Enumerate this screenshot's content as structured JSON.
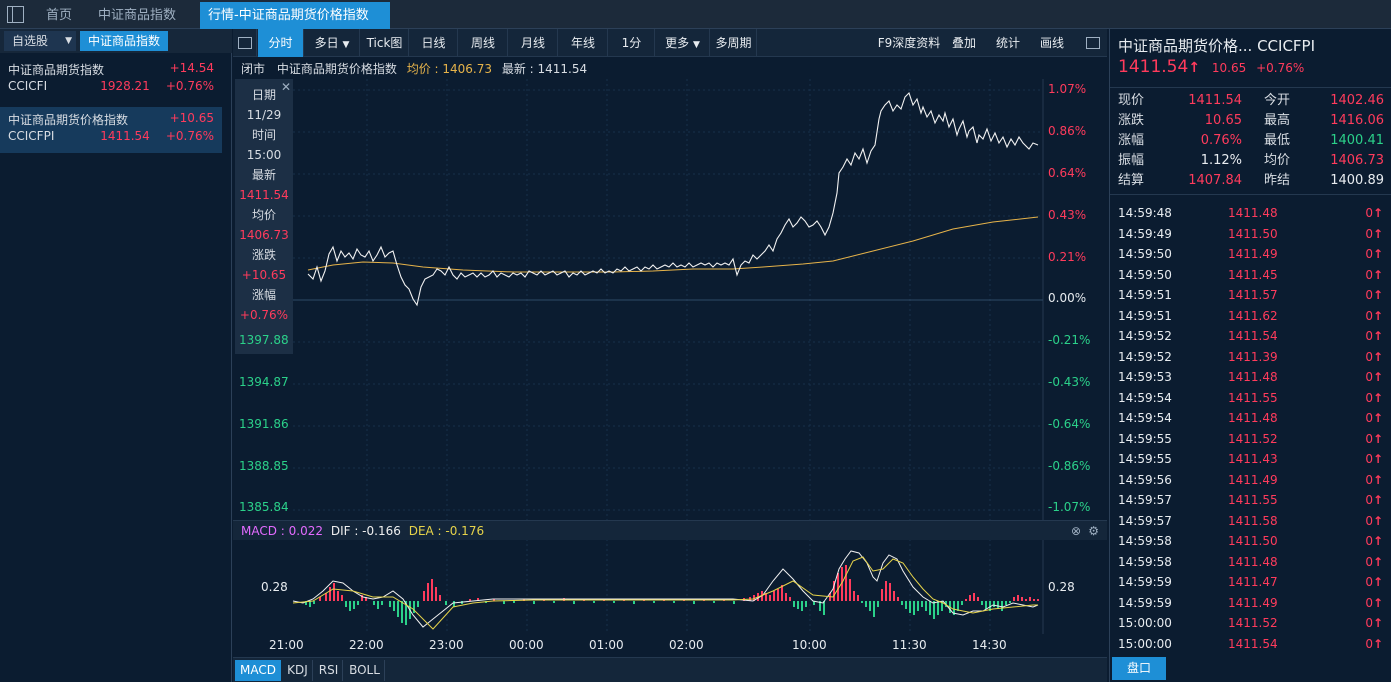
{
  "tabs": [
    "首页",
    "中证商品指数",
    "行情-中证商品期货价格指数"
  ],
  "left": {
    "tabs": [
      "自选股",
      "中证商品指数"
    ],
    "items": [
      {
        "name": "中证商品期货指数",
        "code": "CCICFI",
        "change": "+14.54",
        "price": "1928.21",
        "pct": "+0.76%"
      },
      {
        "name": "中证商品期货价格指数",
        "code": "CCICFPI",
        "change": "+10.65",
        "price": "1411.54",
        "pct": "+0.76%"
      }
    ]
  },
  "toolbar": {
    "buttons": [
      "分时",
      "多日",
      "Tick图",
      "日线",
      "周线",
      "月线",
      "年线",
      "1分",
      "更多",
      "多周期"
    ],
    "right": [
      "F9深度资料",
      "叠加",
      "统计",
      "画线"
    ]
  },
  "chart_info": {
    "status": "闭市",
    "name": "中证商品期货价格指数",
    "avg_label": "均价 : 1406.73",
    "last_label": "最新 : 1411.54"
  },
  "tooltip": {
    "date_label": "日期",
    "date": "11/29",
    "time_label": "时间",
    "time": "15:00",
    "last_label": "最新",
    "last": "1411.54",
    "avg_label": "均价",
    "avg": "1406.73",
    "chg_label": "涨跌",
    "chg": "+10.65",
    "pct_label": "涨幅",
    "pct": "+0.76%"
  },
  "price_axis": [
    "1397.88",
    "1394.87",
    "1391.86",
    "1388.85",
    "1385.84"
  ],
  "pct_axis": [
    "1.07%",
    "0.86%",
    "0.64%",
    "0.43%",
    "0.21%",
    "0.00%",
    "-0.21%",
    "-0.43%",
    "-0.64%",
    "-0.86%",
    "-1.07%"
  ],
  "macd": {
    "title": "MACD : 0.022",
    "dif": "DIF : -0.166",
    "dea": "DEA : -0.176",
    "level_left": "0.28",
    "level_right": "0.28"
  },
  "time_axis": [
    "21:00",
    "22:00",
    "23:00",
    "00:00",
    "01:00",
    "02:00",
    "10:00",
    "11:30",
    "14:30"
  ],
  "indicators": [
    "MACD",
    "KDJ",
    "RSI",
    "BOLL"
  ],
  "colors": {
    "up": "#ff3b5c",
    "down": "#2bd18a",
    "avg": "#e6b34a",
    "accent": "#1e8fd6"
  },
  "right": {
    "title": "中证商品期货价格... CCICFPI",
    "price": "1411.54",
    "arrow": "↑",
    "change": "10.65",
    "pct": "+0.76%",
    "stats": [
      {
        "l1": "现价",
        "v1": "1411.54",
        "l2": "今开",
        "v2": "1402.46"
      },
      {
        "l1": "涨跌",
        "v1": "10.65",
        "l2": "最高",
        "v2": "1416.06"
      },
      {
        "l1": "涨幅",
        "v1": "0.76%",
        "l2": "最低",
        "v2": "1400.41"
      },
      {
        "l1": "振幅",
        "v1": "1.12%",
        "l2": "均价",
        "v2": "1406.73"
      },
      {
        "l1": "结算",
        "v1": "1407.84",
        "l2": "昨结",
        "v2": "1400.89"
      }
    ],
    "ticks": [
      {
        "t": "14:59:48",
        "p": "1411.48",
        "v": "0"
      },
      {
        "t": "14:59:49",
        "p": "1411.50",
        "v": "0"
      },
      {
        "t": "14:59:50",
        "p": "1411.49",
        "v": "0"
      },
      {
        "t": "14:59:50",
        "p": "1411.45",
        "v": "0"
      },
      {
        "t": "14:59:51",
        "p": "1411.57",
        "v": "0"
      },
      {
        "t": "14:59:51",
        "p": "1411.62",
        "v": "0"
      },
      {
        "t": "14:59:52",
        "p": "1411.54",
        "v": "0"
      },
      {
        "t": "14:59:52",
        "p": "1411.39",
        "v": "0"
      },
      {
        "t": "14:59:53",
        "p": "1411.48",
        "v": "0"
      },
      {
        "t": "14:59:54",
        "p": "1411.55",
        "v": "0"
      },
      {
        "t": "14:59:54",
        "p": "1411.48",
        "v": "0"
      },
      {
        "t": "14:59:55",
        "p": "1411.52",
        "v": "0"
      },
      {
        "t": "14:59:55",
        "p": "1411.43",
        "v": "0"
      },
      {
        "t": "14:59:56",
        "p": "1411.49",
        "v": "0"
      },
      {
        "t": "14:59:57",
        "p": "1411.55",
        "v": "0"
      },
      {
        "t": "14:59:57",
        "p": "1411.58",
        "v": "0"
      },
      {
        "t": "14:59:58",
        "p": "1411.50",
        "v": "0"
      },
      {
        "t": "14:59:58",
        "p": "1411.48",
        "v": "0"
      },
      {
        "t": "14:59:59",
        "p": "1411.47",
        "v": "0"
      },
      {
        "t": "14:59:59",
        "p": "1411.49",
        "v": "0"
      },
      {
        "t": "15:00:00",
        "p": "1411.52",
        "v": "0"
      },
      {
        "t": "15:00:00",
        "p": "1411.54",
        "v": "0"
      }
    ],
    "bottom_button": "盘口"
  }
}
